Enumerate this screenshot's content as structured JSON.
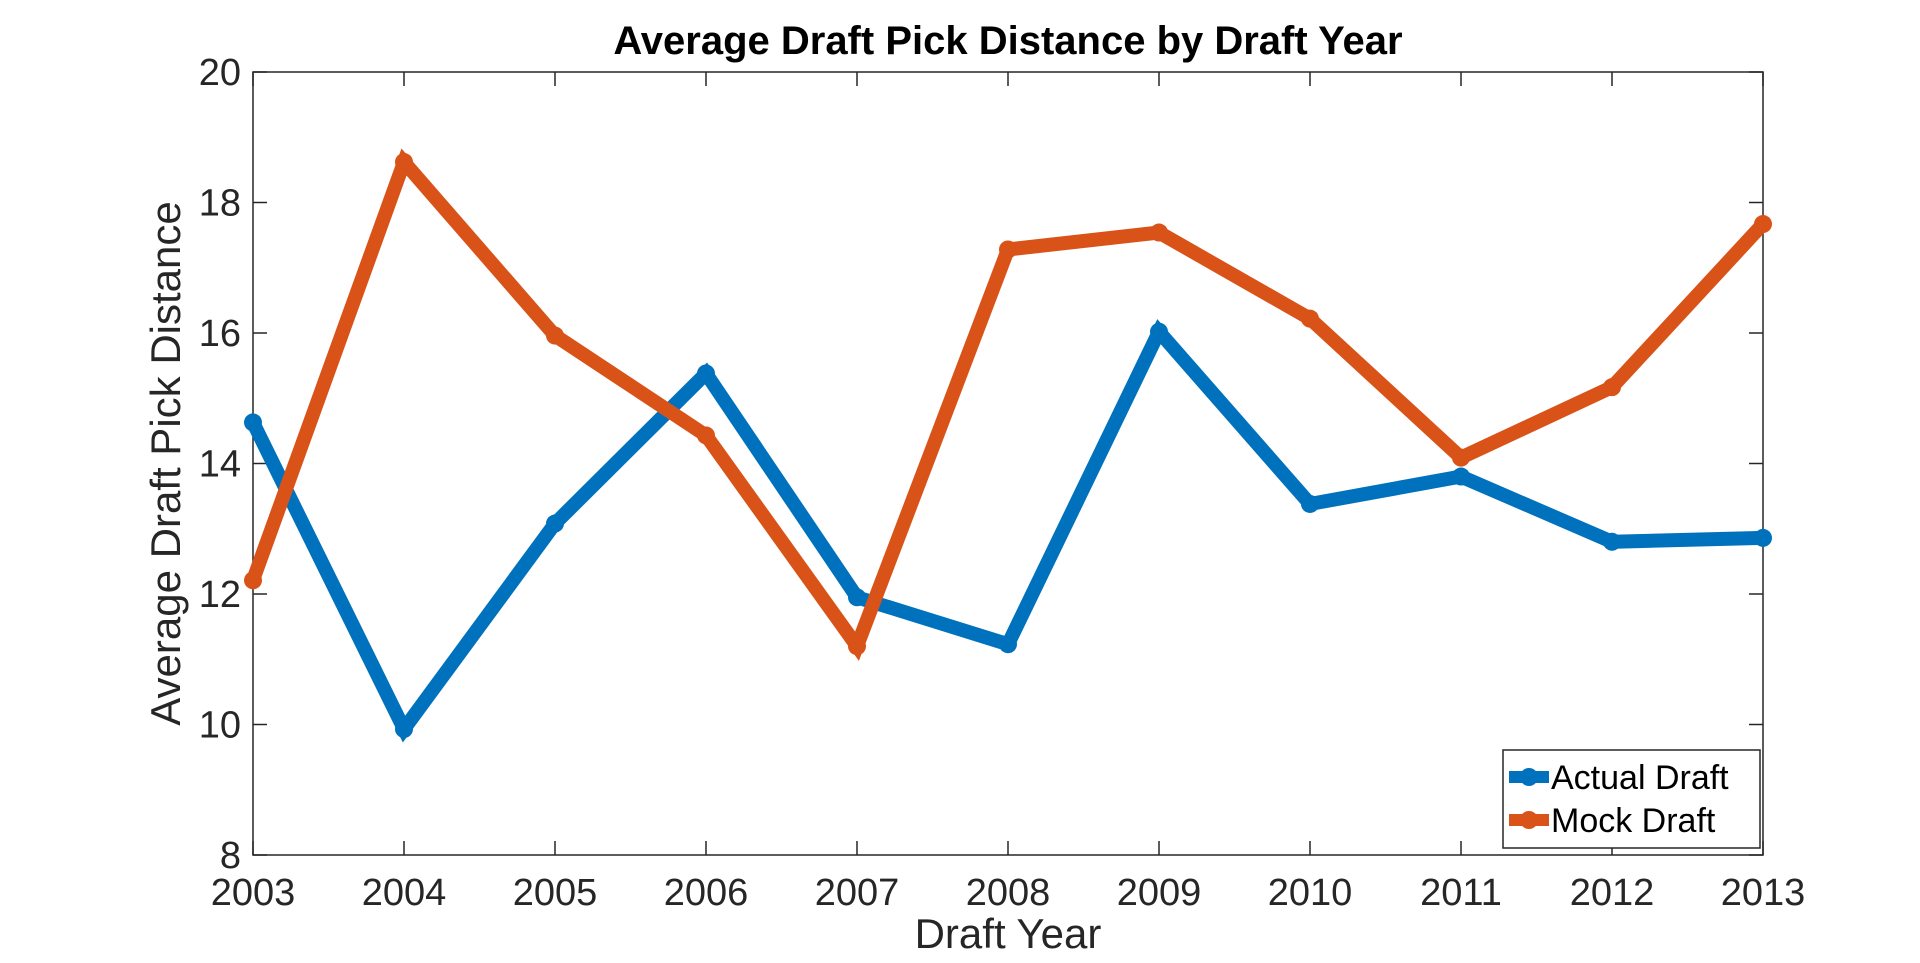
{
  "chart_data": {
    "type": "line",
    "title": "Average Draft Pick Distance by Draft Year",
    "xlabel": "Draft Year",
    "ylabel": "Average Draft Pick Distance",
    "x": [
      2003,
      2004,
      2005,
      2006,
      2007,
      2008,
      2009,
      2010,
      2011,
      2012,
      2013
    ],
    "xticks": [
      "2003",
      "2004",
      "2005",
      "2006",
      "2007",
      "2008",
      "2009",
      "2010",
      "2011",
      "2012",
      "2013"
    ],
    "yticks": [
      "8",
      "10",
      "12",
      "14",
      "16",
      "18",
      "20"
    ],
    "xlim": [
      2003,
      2013
    ],
    "ylim": [
      8,
      20
    ],
    "grid": false,
    "legend_position": "bottom-right",
    "series": [
      {
        "name": "Actual Draft",
        "color": "#0072BD",
        "values": [
          14.63,
          9.93,
          13.08,
          15.38,
          11.95,
          11.23,
          16.02,
          13.38,
          13.8,
          12.8,
          12.86
        ]
      },
      {
        "name": "Mock Draft",
        "color": "#D95319",
        "values": [
          12.21,
          18.62,
          15.96,
          14.43,
          11.2,
          17.28,
          17.54,
          16.22,
          14.09,
          15.17,
          17.67
        ]
      }
    ]
  }
}
